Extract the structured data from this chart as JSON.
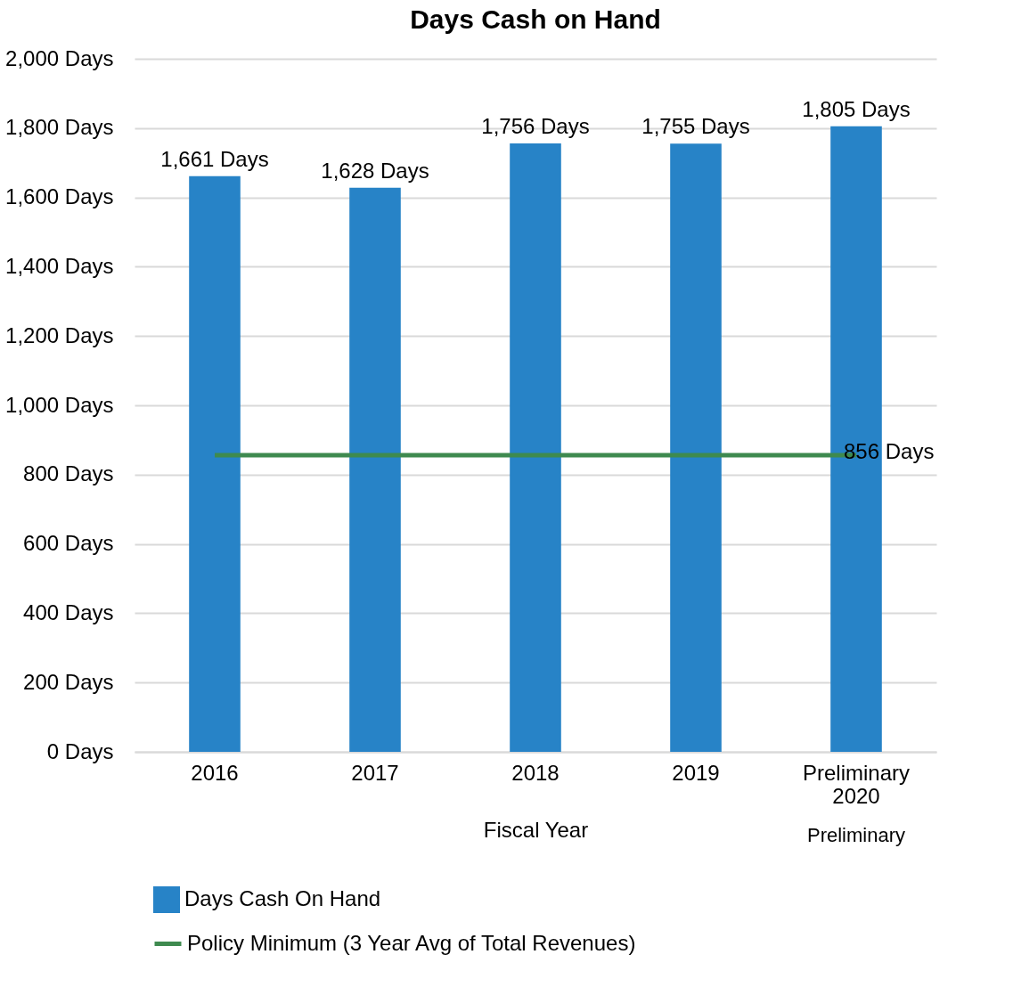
{
  "chart_data": {
    "type": "bar",
    "title": "Days Cash on Hand",
    "xlabel": "Fiscal Year",
    "categories": [
      "2016",
      "2017",
      "2018",
      "2019",
      "Preliminary 2020"
    ],
    "series": [
      {
        "name": "Days Cash On Hand",
        "color": "#2783c7",
        "values": [
          1661,
          1628,
          1756,
          1755,
          1805
        ],
        "value_labels": [
          "1,661 Days",
          "1,628 Days",
          "1,756 Days",
          "1,755 Days",
          "1,805 Days"
        ]
      },
      {
        "name": "Policy Minimum (3 Year Avg of Total Revenues)",
        "type": "line",
        "color": "#3e8a4f",
        "values": [
          856,
          856,
          856,
          856,
          856
        ],
        "value_labels": [
          null,
          null,
          null,
          null,
          "856 Days"
        ]
      }
    ],
    "ylim": [
      0,
      2000
    ],
    "yticks": [
      {
        "value": 0,
        "label": "0 Days"
      },
      {
        "value": 200,
        "label": "200 Days"
      },
      {
        "value": 400,
        "label": "400 Days"
      },
      {
        "value": 600,
        "label": "600 Days"
      },
      {
        "value": 800,
        "label": "800 Days"
      },
      {
        "value": 1000,
        "label": "1,000 Days"
      },
      {
        "value": 1200,
        "label": "1,200 Days"
      },
      {
        "value": 1400,
        "label": "1,400 Days"
      },
      {
        "value": 1600,
        "label": "1,600 Days"
      },
      {
        "value": 1800,
        "label": "1,800 Days"
      },
      {
        "value": 2000,
        "label": "2,000 Days"
      }
    ],
    "grid": "y",
    "legend": "bottom",
    "marker": "none",
    "annotations": [
      "Preliminary"
    ]
  }
}
